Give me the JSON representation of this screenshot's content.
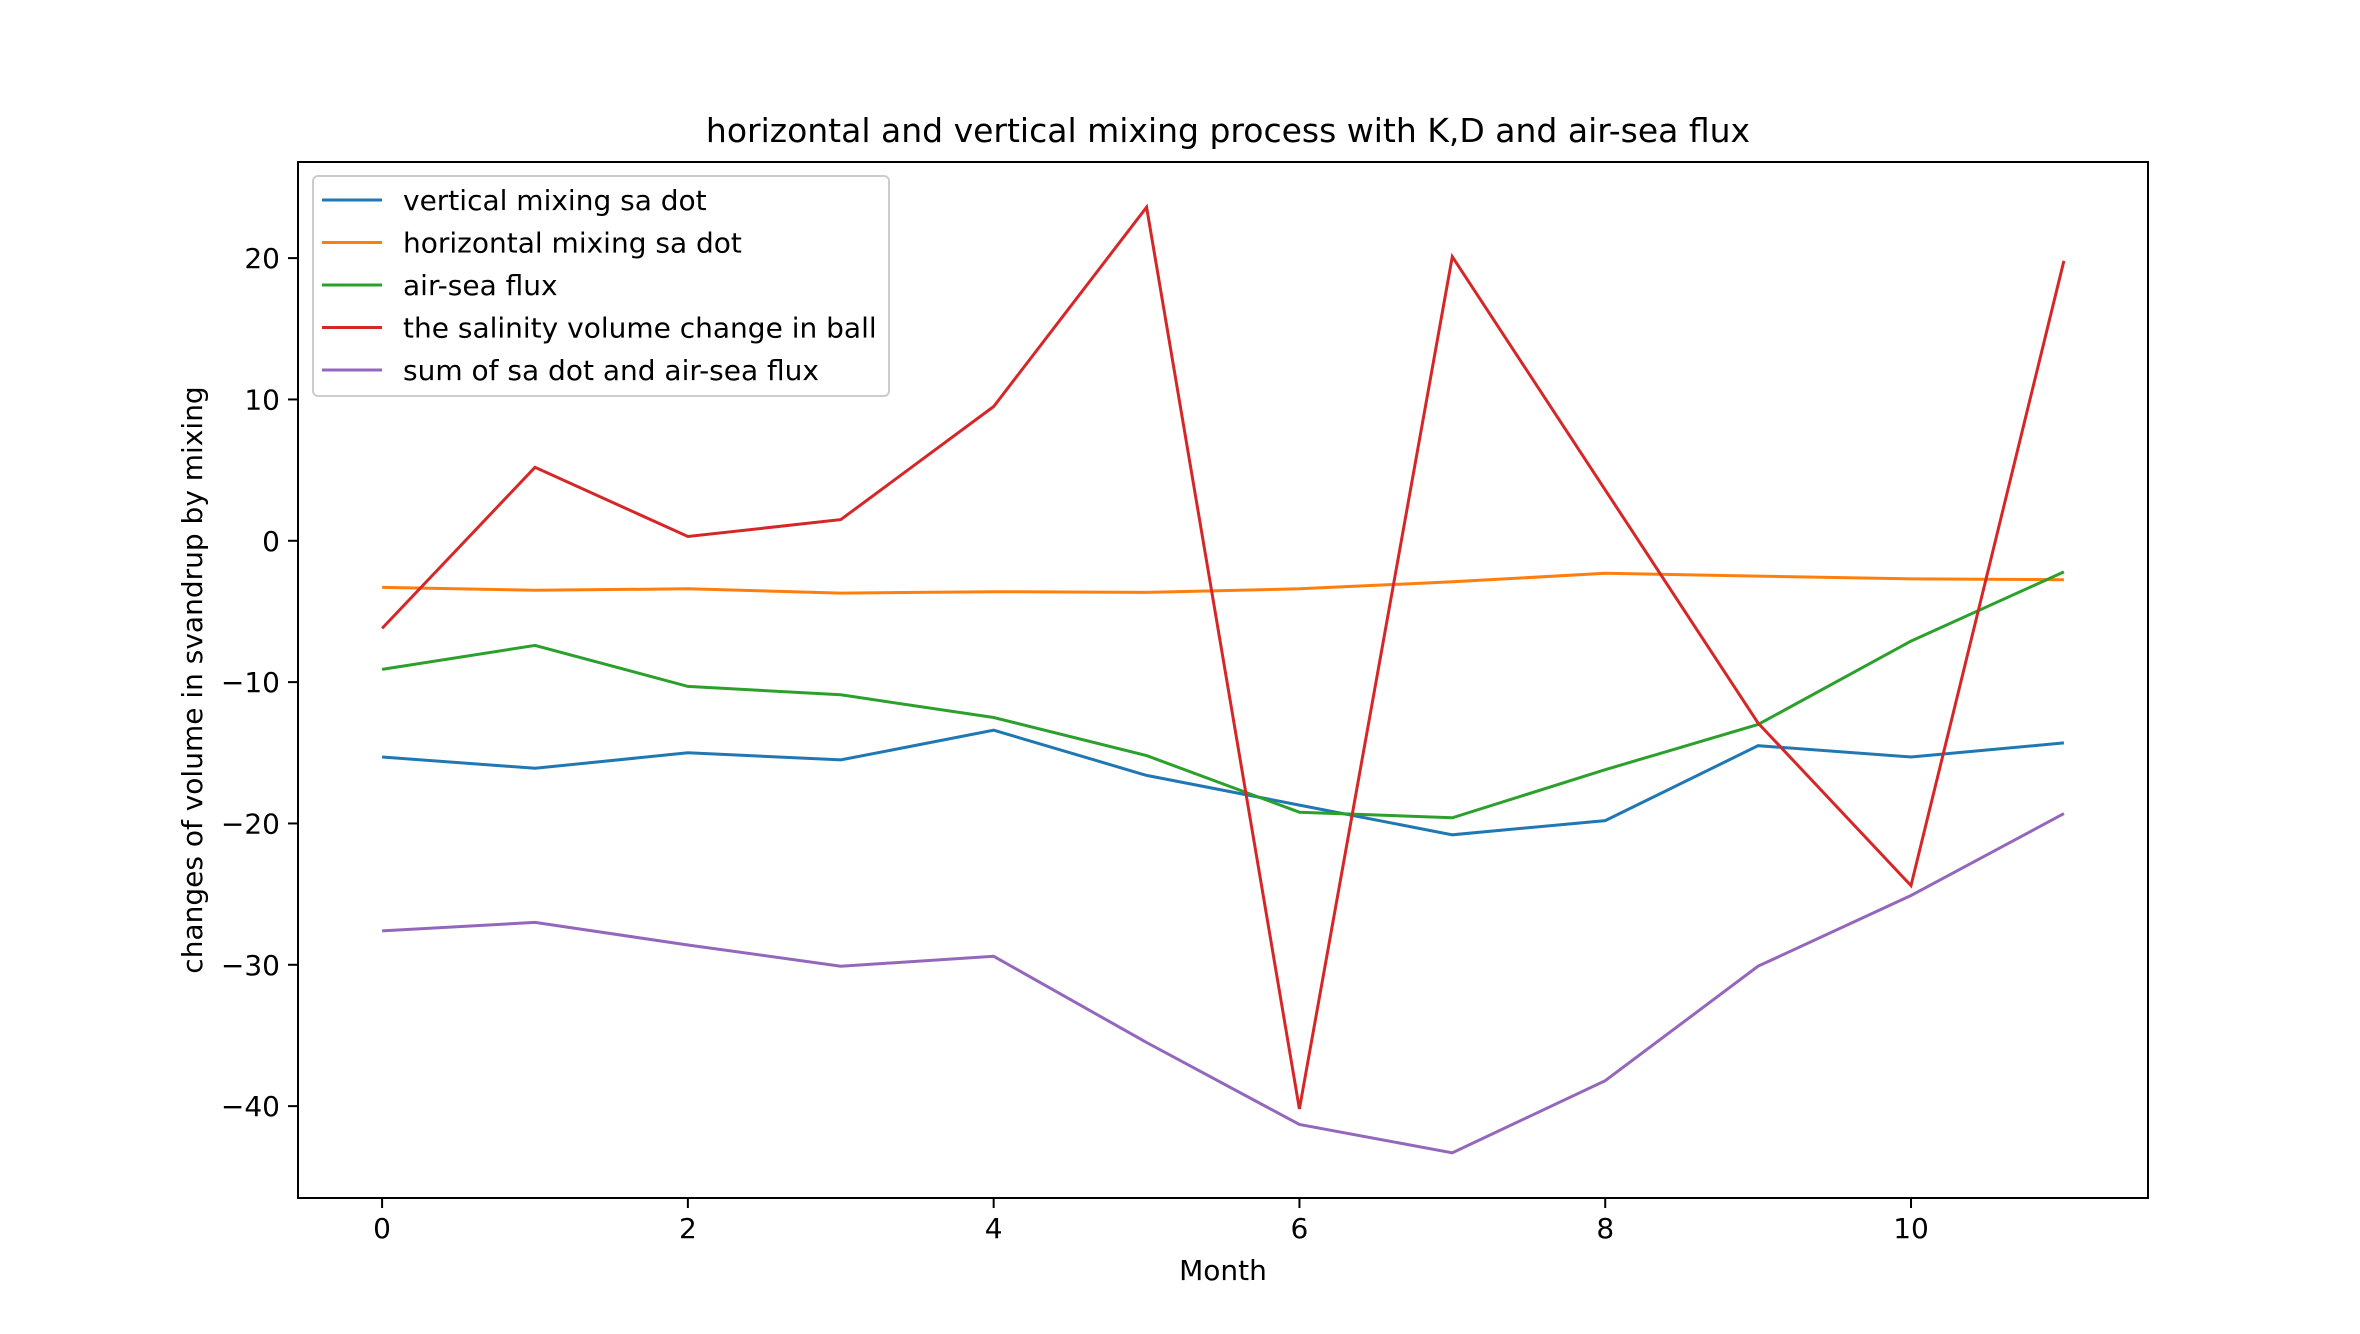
{
  "chart_data": {
    "type": "line",
    "title": "horizontal and vertical mixing process with K,D and air-sea flux",
    "xlabel": "Month",
    "ylabel": "changes of volume in svandrup by mixing",
    "xlim": [
      -0.55,
      11.55
    ],
    "ylim": [
      -46.5,
      26.8
    ],
    "xticks": [
      0,
      2,
      4,
      6,
      8,
      10
    ],
    "xtick_labels": [
      "0",
      "2",
      "4",
      "6",
      "8",
      "10"
    ],
    "yticks": [
      -40,
      -30,
      -20,
      -10,
      0,
      10,
      20
    ],
    "ytick_labels": [
      "−40",
      "−30",
      "−20",
      "−10",
      "0",
      "10",
      "20"
    ],
    "grid": false,
    "legend_position": "top-left",
    "x": [
      0,
      1,
      2,
      3,
      4,
      5,
      6,
      7,
      8,
      9,
      10,
      11
    ],
    "series": [
      {
        "name": "vertical mixing sa dot",
        "color": "#1f77b4",
        "values": [
          -15.3,
          -16.1,
          -15.0,
          -15.5,
          -13.4,
          -16.6,
          -18.7,
          -20.8,
          -19.8,
          -14.5,
          -15.3,
          -14.3
        ]
      },
      {
        "name": "horizontal mixing sa dot",
        "color": "#ff7f0e",
        "values": [
          -3.3,
          -3.5,
          -3.4,
          -3.7,
          -3.6,
          -3.65,
          -3.4,
          -2.9,
          -2.3,
          -2.5,
          -2.7,
          -2.75
        ]
      },
      {
        "name": "air-sea flux",
        "color": "#2ca02c",
        "values": [
          -9.1,
          -7.4,
          -10.3,
          -10.9,
          -12.5,
          -15.2,
          -19.2,
          -19.6,
          -16.2,
          -13.0,
          -7.1,
          -2.2
        ]
      },
      {
        "name": "the salinity volume change in ball",
        "color": "#d62728",
        "values": [
          -6.2,
          5.2,
          0.3,
          1.5,
          9.5,
          23.6,
          -40.2,
          20.1,
          3.6,
          -12.9,
          -24.4,
          19.8
        ]
      },
      {
        "name": "sum of sa dot and air-sea flux",
        "color": "#9467bd",
        "values": [
          -27.6,
          -27.0,
          -28.6,
          -30.1,
          -29.4,
          -35.5,
          -41.3,
          -43.3,
          -38.2,
          -30.1,
          -25.1,
          -19.3
        ]
      }
    ]
  }
}
